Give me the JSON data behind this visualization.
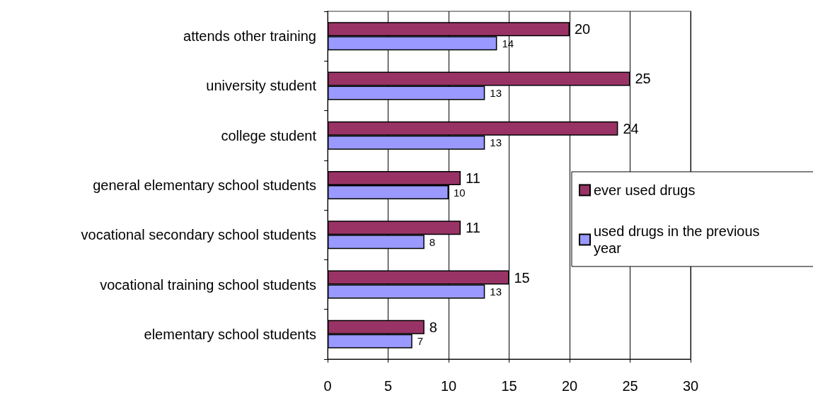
{
  "chart_data": {
    "type": "bar",
    "orientation": "horizontal",
    "categories": [
      "attends other training",
      "university student",
      "college student",
      "general elementary school students",
      "vocational secondary school students",
      "vocational training school students",
      "elementary school students"
    ],
    "series": [
      {
        "name": "ever used drugs",
        "color": "#993366",
        "values": [
          20,
          25,
          24,
          11,
          11,
          15,
          8
        ]
      },
      {
        "name": "used drugs in the previous year",
        "color": "#9999ff",
        "values": [
          14,
          13,
          13,
          10,
          8,
          13,
          7
        ]
      }
    ],
    "xlim": [
      0,
      30
    ],
    "xticks": [
      0,
      5,
      10,
      15,
      20,
      25,
      30
    ],
    "grid": "x",
    "legend": "right",
    "data_labels": true
  }
}
